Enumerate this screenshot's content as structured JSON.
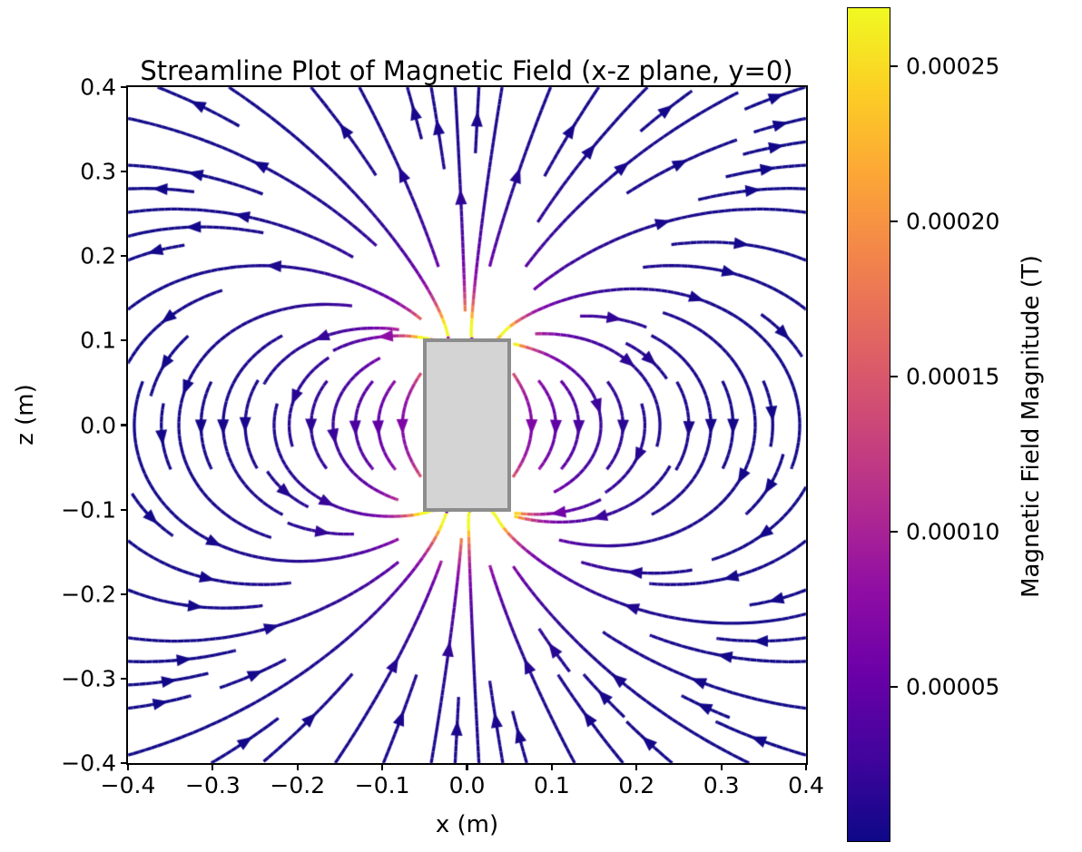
{
  "chart_data": {
    "type": "streamline",
    "title": "Streamline Plot of Magnetic Field (x-z plane, y=0)",
    "xlabel": "x (m)",
    "ylabel": "z (m)",
    "xlim": [
      -0.4,
      0.4
    ],
    "ylim": [
      -0.4,
      0.4
    ],
    "grid": false,
    "x_ticks": {
      "values": [
        -0.4,
        -0.3,
        -0.2,
        -0.1,
        0.0,
        0.1,
        0.2,
        0.3,
        0.4
      ],
      "labels": [
        "−0.4",
        "−0.3",
        "−0.2",
        "−0.1",
        "0.0",
        "0.1",
        "0.2",
        "0.3",
        "0.4"
      ]
    },
    "y_ticks": {
      "values": [
        -0.4,
        -0.3,
        -0.2,
        -0.1,
        0.0,
        0.1,
        0.2,
        0.3,
        0.4
      ],
      "labels": [
        "−0.4",
        "−0.3",
        "−0.2",
        "−0.1",
        "0.0",
        "0.1",
        "0.2",
        "0.3",
        "0.4"
      ]
    },
    "colorbar": {
      "label": "Magnetic Field Magnitude (T)",
      "vmin": 0,
      "vmax": 0.000269,
      "tick_values": [
        5e-05,
        0.0001,
        0.00015,
        0.0002,
        0.00025
      ],
      "tick_labels": [
        "0.00005",
        "0.00010",
        "0.00015",
        "0.00020",
        "0.00025"
      ],
      "colormap": "plasma",
      "position": "right"
    },
    "colormap_stops": [
      "#0d0887",
      "#41049d",
      "#6a00a8",
      "#8f0da4",
      "#b12a90",
      "#cc4778",
      "#e16462",
      "#f2844b",
      "#fca636",
      "#fcce25",
      "#f0f921"
    ],
    "magnet": {
      "shape": "rectangle",
      "x_halfwidth": 0.05,
      "y_halfdepth": 0.05,
      "z_halfheight": 0.1,
      "magnetization_axis": "+z",
      "face_color": "#d4d4d4",
      "edge_color": "#8d8d8d"
    },
    "field_model": {
      "description": "uniformly magnetized bar magnet modeled as + and − charged pole faces at z = ±0.1",
      "pole_face_grid": 6,
      "calibration_point": [
        0,
        0.12
      ],
      "calibration_B": 0.00028,
      "direction": "field exits top (north) pole, loops around, enters bottom (south) pole"
    },
    "streamplot": {
      "density_cells": 30,
      "line_width": 3.3,
      "step": 0.0025,
      "min_length": 0.06,
      "max_steps_per_dir": 1400,
      "arrow_length": 17,
      "arrow_half_width": 6.5
    }
  },
  "colors": {
    "background": "#ffffff",
    "frame": "#000000",
    "text": "#000000"
  }
}
